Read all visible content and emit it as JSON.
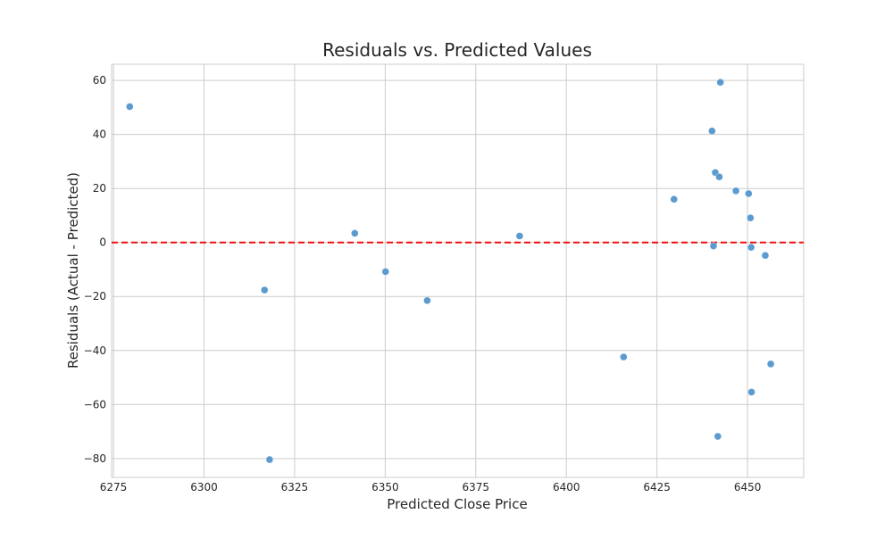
{
  "chart_data": {
    "type": "scatter",
    "title": "Residuals vs. Predicted Values",
    "xlabel": "Predicted Close Price",
    "ylabel": "Residuals (Actual - Predicted)",
    "xlim": [
      6274.5,
      6465.5
    ],
    "ylim": [
      -87,
      66
    ],
    "xticks": [
      6275,
      6300,
      6325,
      6350,
      6375,
      6400,
      6425,
      6450
    ],
    "yticks": [
      60,
      40,
      20,
      0,
      -20,
      -40,
      -60,
      -80
    ],
    "grid": true,
    "reference_line": {
      "y": 0,
      "style": "dashed",
      "color": "#ee1111"
    },
    "point_color": "#5b9bd0",
    "points": [
      {
        "x": 6279.5,
        "y": 50.3
      },
      {
        "x": 6316.7,
        "y": -17.6
      },
      {
        "x": 6318.1,
        "y": -80.4
      },
      {
        "x": 6341.6,
        "y": 3.4
      },
      {
        "x": 6350.1,
        "y": -10.8
      },
      {
        "x": 6361.6,
        "y": -21.5
      },
      {
        "x": 6387.1,
        "y": 2.4
      },
      {
        "x": 6415.8,
        "y": -42.4
      },
      {
        "x": 6429.7,
        "y": 16.0
      },
      {
        "x": 6440.2,
        "y": 41.3
      },
      {
        "x": 6440.6,
        "y": -1.3
      },
      {
        "x": 6441.1,
        "y": 25.9
      },
      {
        "x": 6441.8,
        "y": -71.8
      },
      {
        "x": 6442.2,
        "y": 24.3
      },
      {
        "x": 6442.5,
        "y": 59.3
      },
      {
        "x": 6446.8,
        "y": 19.1
      },
      {
        "x": 6450.3,
        "y": 18.1
      },
      {
        "x": 6450.8,
        "y": 9.1
      },
      {
        "x": 6451.0,
        "y": -1.8
      },
      {
        "x": 6451.1,
        "y": -55.4
      },
      {
        "x": 6454.9,
        "y": -4.8
      },
      {
        "x": 6456.4,
        "y": -45.0
      }
    ]
  }
}
